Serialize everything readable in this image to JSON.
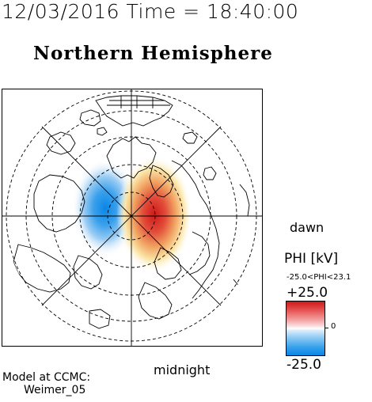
{
  "header": {
    "timestamp": "12/03/2016 Time = 18:40:00",
    "title": "Northern Hemisphere"
  },
  "map": {
    "orientation_labels": {
      "right": "dawn",
      "bottom": "midnight"
    }
  },
  "colorbar": {
    "title": "PHI [kV]",
    "range_text": "-25.0<PHI<23.1",
    "max_label": "+25.0",
    "min_label": "-25.0",
    "zero_label": "0",
    "colors": {
      "positive": "#d01818",
      "zero": "#ffffff",
      "negative": "#0a86e6"
    }
  },
  "model": {
    "line1": "Model at CCMC:",
    "line2": "Weimer_05"
  }
}
